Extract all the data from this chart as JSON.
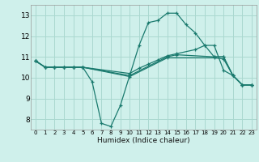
{
  "xlabel": "Humidex (Indice chaleur)",
  "bg_color": "#cff0eb",
  "grid_color": "#aad8d0",
  "line_color": "#1a7a6e",
  "xlim": [
    -0.5,
    23.5
  ],
  "ylim": [
    7.5,
    13.5
  ],
  "yticks": [
    8,
    9,
    10,
    11,
    12,
    13
  ],
  "xticks": [
    0,
    1,
    2,
    3,
    4,
    5,
    6,
    7,
    8,
    9,
    10,
    11,
    12,
    13,
    14,
    15,
    16,
    17,
    18,
    19,
    20,
    21,
    22,
    23
  ],
  "lines": [
    {
      "x": [
        0,
        1,
        2,
        3,
        4,
        5,
        6,
        7,
        8,
        9,
        10,
        11,
        12,
        13,
        14,
        15,
        16,
        17,
        18,
        19,
        20,
        21,
        22,
        23
      ],
      "y": [
        10.8,
        10.5,
        10.5,
        10.5,
        10.5,
        10.5,
        9.8,
        7.8,
        7.65,
        8.65,
        10.1,
        11.55,
        12.65,
        12.75,
        13.1,
        13.1,
        12.55,
        12.15,
        11.55,
        11.55,
        10.35,
        10.1,
        9.65,
        9.65
      ]
    },
    {
      "x": [
        0,
        1,
        2,
        3,
        4,
        5,
        10,
        11,
        12,
        13,
        14,
        15,
        17,
        18,
        19,
        20,
        21,
        22,
        23
      ],
      "y": [
        10.8,
        10.5,
        10.5,
        10.5,
        10.5,
        10.5,
        10.2,
        10.45,
        10.65,
        10.85,
        11.05,
        11.15,
        11.35,
        11.55,
        11.0,
        11.0,
        10.1,
        9.65,
        9.65
      ]
    },
    {
      "x": [
        0,
        1,
        2,
        3,
        4,
        5,
        10,
        14,
        15,
        19,
        20,
        21,
        22,
        23
      ],
      "y": [
        10.8,
        10.5,
        10.5,
        10.5,
        10.5,
        10.5,
        10.1,
        11.0,
        11.1,
        11.0,
        11.0,
        10.1,
        9.65,
        9.65
      ]
    },
    {
      "x": [
        0,
        1,
        2,
        3,
        4,
        5,
        10,
        14,
        19,
        20,
        21,
        22,
        23
      ],
      "y": [
        10.8,
        10.5,
        10.5,
        10.5,
        10.5,
        10.5,
        10.05,
        10.95,
        10.95,
        10.9,
        10.1,
        9.65,
        9.65
      ]
    }
  ]
}
